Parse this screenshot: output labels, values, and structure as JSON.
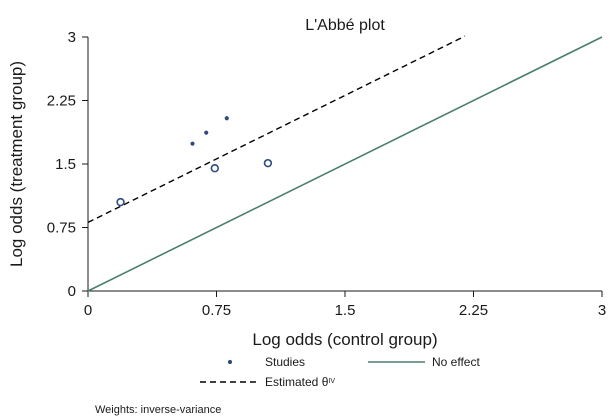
{
  "chart_data": {
    "type": "scatter",
    "title": "L'Abbé plot",
    "xlabel": "Log odds (control group)",
    "ylabel": "Log odds (treatment group)",
    "xlim": [
      0,
      3
    ],
    "ylim": [
      0,
      3
    ],
    "xticks": [
      0,
      0.75,
      1.5,
      2.25,
      3
    ],
    "yticks": [
      0,
      0.75,
      1.5,
      2.25,
      3
    ],
    "xtick_labels": [
      "0",
      "0.75",
      "1.5",
      "2.25",
      "3"
    ],
    "ytick_labels": [
      "0",
      "0.75",
      "1.5",
      "2.25",
      "3"
    ],
    "grid": false,
    "series": [
      {
        "name": "Studies",
        "kind": "points",
        "color": "#2f4b7c",
        "points": [
          {
            "x": 0.19,
            "y": 1.05,
            "weight": "large"
          },
          {
            "x": 0.61,
            "y": 1.74,
            "weight": "small"
          },
          {
            "x": 0.69,
            "y": 1.87,
            "weight": "small"
          },
          {
            "x": 0.74,
            "y": 1.45,
            "weight": "large"
          },
          {
            "x": 0.81,
            "y": 2.04,
            "weight": "small"
          },
          {
            "x": 1.05,
            "y": 1.51,
            "weight": "large"
          }
        ]
      },
      {
        "name": "No effect",
        "kind": "line",
        "color": "#4a7f6b",
        "x": [
          0,
          3
        ],
        "y": [
          0,
          3
        ]
      },
      {
        "name": "Estimated θ",
        "name_superscript": "IV",
        "kind": "dashed-line",
        "color": "#000000",
        "x": [
          0,
          2.2
        ],
        "y": [
          0.81,
          3.01
        ]
      }
    ],
    "legend": {
      "placement": "bottom",
      "items": [
        {
          "label": "Studies",
          "symbol": "point"
        },
        {
          "label": "No effect",
          "symbol": "solid-line"
        },
        {
          "label": "Estimated θ",
          "superscript": "IV",
          "symbol": "dashed-line"
        }
      ]
    },
    "note": "Weights: inverse-variance"
  }
}
